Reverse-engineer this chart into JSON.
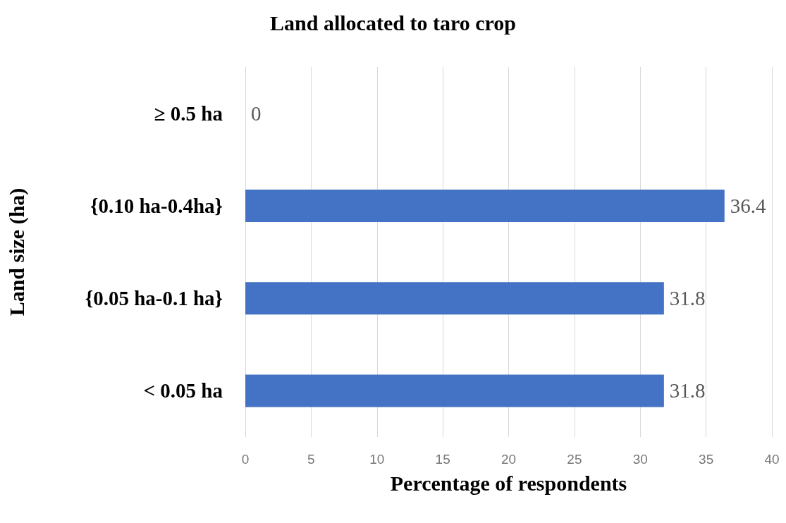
{
  "chart_data": {
    "type": "bar",
    "orientation": "horizontal",
    "title": "Land allocated to taro crop",
    "xlabel": "Percentage of respondents",
    "ylabel": "Land size (ha)",
    "categories": [
      "≥ 0.5 ha",
      "{0.10 ha-0.4ha}",
      "{0.05 ha-0.1 ha}",
      "< 0.05 ha"
    ],
    "values": [
      0,
      36.4,
      31.8,
      31.8
    ],
    "color": "#4472c4",
    "xlim": [
      0,
      40
    ],
    "xticks": [
      0,
      5,
      10,
      15,
      20,
      25,
      30,
      35,
      40
    ],
    "grid": "x",
    "data_labels": true
  }
}
